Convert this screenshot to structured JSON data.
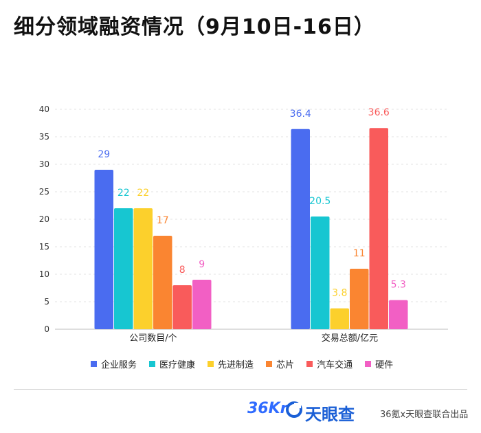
{
  "header": {
    "title": "细分领域融资情况（9月10日-16日）"
  },
  "chart_data": {
    "type": "bar",
    "categories": [
      "公司数目/个",
      "交易总额/亿元"
    ],
    "series": [
      {
        "name": "企业服务",
        "color": "#4a6cf0",
        "values": [
          29,
          36.4
        ],
        "labels": [
          "29",
          "36.4"
        ]
      },
      {
        "name": "医疗健康",
        "color": "#17c6d1",
        "values": [
          22,
          20.5
        ],
        "labels": [
          "22",
          "20.5"
        ]
      },
      {
        "name": "先进制造",
        "color": "#fcd02c",
        "values": [
          22,
          3.8
        ],
        "labels": [
          "22",
          "3.8"
        ]
      },
      {
        "name": "芯片",
        "color": "#fa8531",
        "values": [
          17,
          11
        ],
        "labels": [
          "17",
          "11"
        ]
      },
      {
        "name": "汽车交通",
        "color": "#f95b5b",
        "values": [
          8,
          36.6
        ],
        "labels": [
          "8",
          "36.6"
        ]
      },
      {
        "name": "硬件",
        "color": "#f25fc4",
        "values": [
          9,
          5.3
        ],
        "labels": [
          "9",
          "5.3"
        ]
      }
    ],
    "yticks": [
      "0",
      "5",
      "10",
      "15",
      "20",
      "25",
      "30",
      "35",
      "40"
    ],
    "ylim": [
      0,
      40
    ],
    "grid": true,
    "legend_position": "bottom"
  },
  "footer": {
    "logo_36kr": "36Kr",
    "logo_tianyancha": "天眼查",
    "credit": "36氪x天眼查联合出品"
  }
}
